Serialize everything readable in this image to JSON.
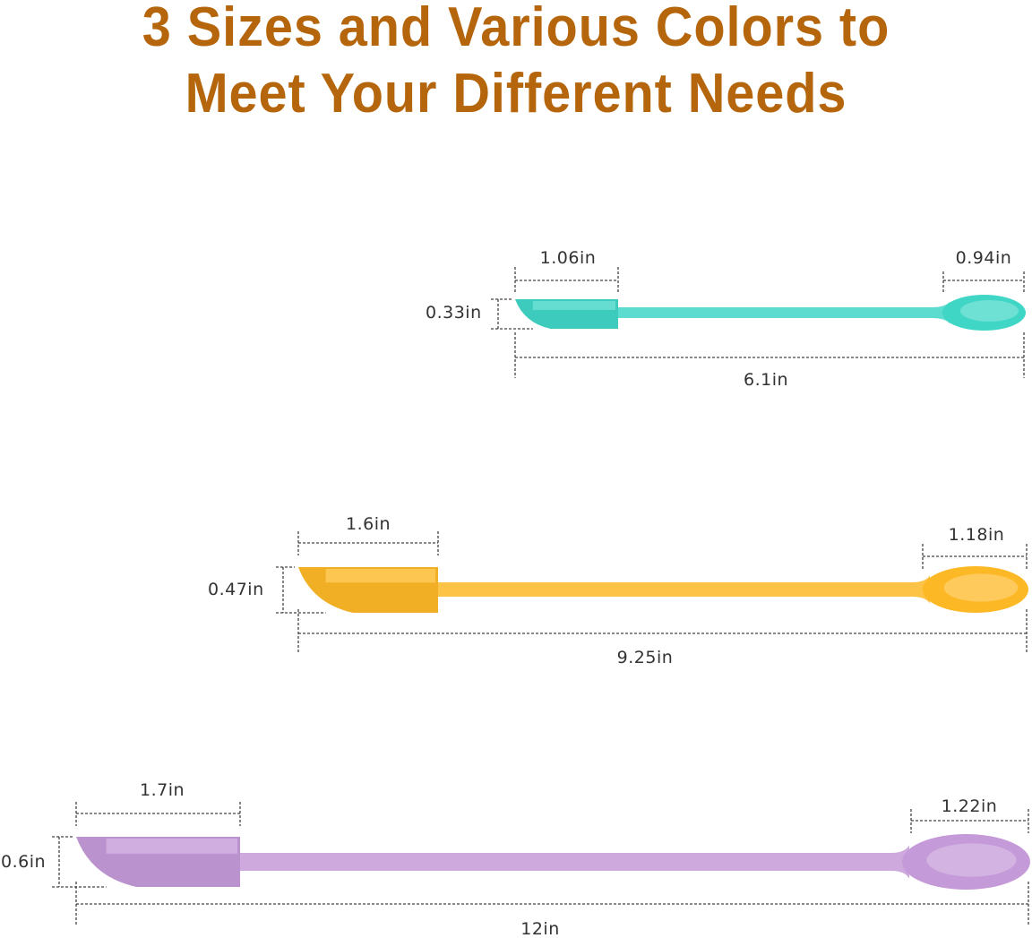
{
  "title": {
    "line1": "3 Sizes and Various Colors to",
    "line2": "Meet Your Different Needs",
    "color": "#b5650b"
  },
  "spatulas": [
    {
      "size": "small",
      "color": "#3fd6c6",
      "head_length": "1.06in",
      "spoon_length": "0.94in",
      "head_width": "0.33in",
      "total_length": "6.1in"
    },
    {
      "size": "medium",
      "color": "#fdb826",
      "head_length": "1.6in",
      "spoon_length": "1.18in",
      "head_width": "0.47in",
      "total_length": "9.25in"
    },
    {
      "size": "large",
      "color": "#c49ad8",
      "head_length": "1.7in",
      "spoon_length": "1.22in",
      "head_width": "0.6in",
      "total_length": "12in"
    }
  ]
}
